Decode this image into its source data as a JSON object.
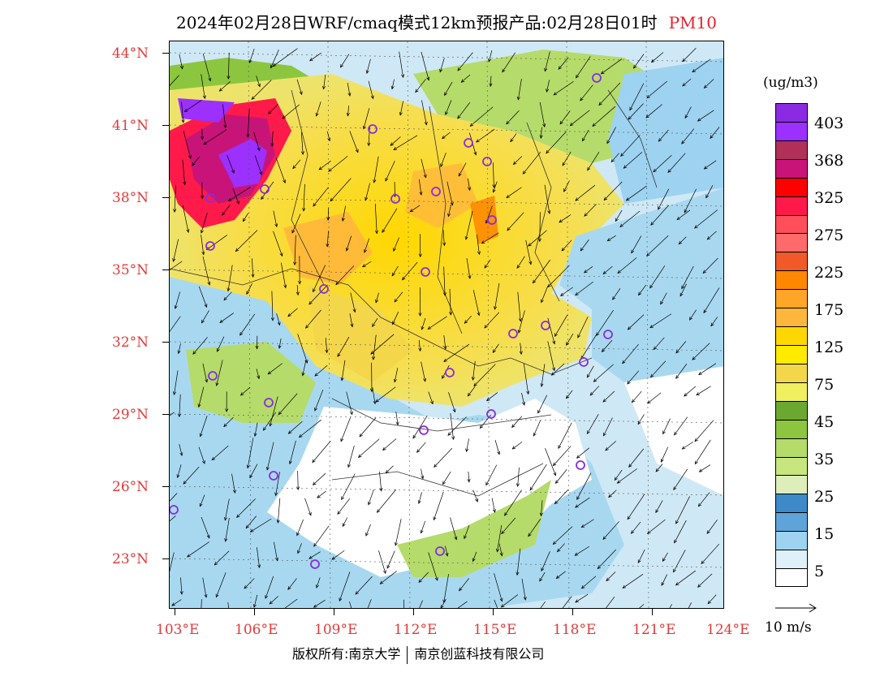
{
  "title": {
    "main": "2024年02月28日WRF/cmaq模式12km预报产品:02月28日01时",
    "variable": "PM10"
  },
  "latitude_labels": [
    "44°N",
    "41°N",
    "38°N",
    "35°N",
    "32°N",
    "29°N",
    "26°N",
    "23°N"
  ],
  "longitude_labels": [
    "103°E",
    "106°E",
    "109°E",
    "112°E",
    "115°E",
    "118°E",
    "121°E",
    "124°E"
  ],
  "legend": {
    "unit": "(ug/m3)",
    "labels": [
      "403",
      "368",
      "325",
      "275",
      "225",
      "175",
      "125",
      "75",
      "45",
      "35",
      "25",
      "15",
      "5"
    ],
    "colors": [
      "#8a2be2",
      "#9b30ff",
      "#b0305a",
      "#c81478",
      "#ff0000",
      "#ff1a4a",
      "#ff4f5a",
      "#ff6a6a",
      "#f05a28",
      "#ff8800",
      "#ffa528",
      "#ffb63c",
      "#ffd700",
      "#ffea00",
      "#f3d64a",
      "#efef60",
      "#6aa832",
      "#8cc63f",
      "#b5db6a",
      "#c8e67f",
      "#ddeebb",
      "#3e8ac9",
      "#5fa3d8",
      "#9dd2f0",
      "#dff0f9",
      "#ffffff"
    ]
  },
  "reference_vector": {
    "label": "10 m/s"
  },
  "footer": {
    "left": "版权所有:南京大学",
    "right": "南京创蓝科技有限公司"
  },
  "colors": {
    "axis_label": "#e03a3a",
    "title_variable": "#e8202a",
    "station_marker": "#8a2be2"
  }
}
